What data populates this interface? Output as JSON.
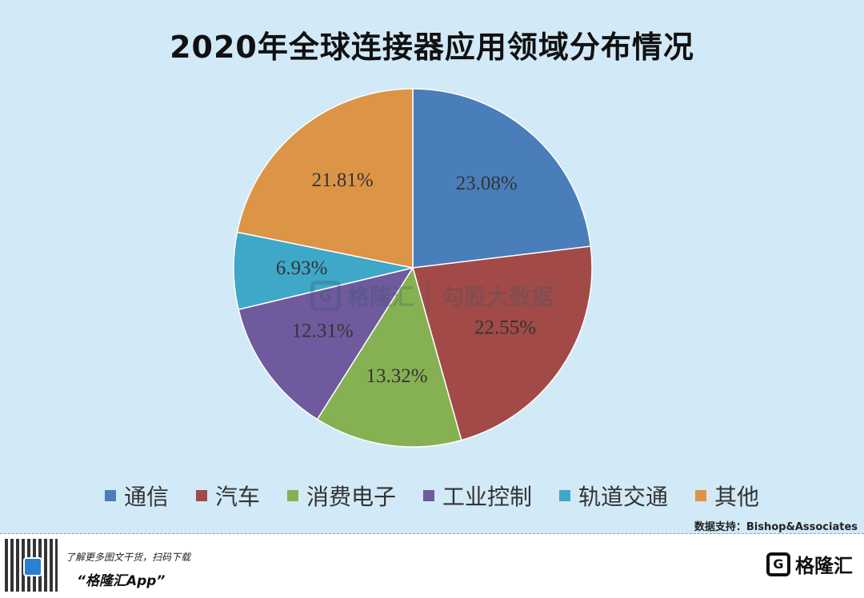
{
  "header": {
    "title": "2020年全球连接器应用领域分布情况"
  },
  "chart_data": {
    "type": "pie",
    "title": "2020年全球连接器应用领域分布情况",
    "slices": [
      {
        "label": "通信",
        "value": 23.08,
        "value_label": "23.08%",
        "color": "#4a7ebb"
      },
      {
        "label": "汽车",
        "value": 22.55,
        "value_label": "22.55%",
        "color": "#a24a48"
      },
      {
        "label": "消费电子",
        "value": 13.32,
        "value_label": "13.32%",
        "color": "#86b152"
      },
      {
        "label": "工业控制",
        "value": 12.31,
        "value_label": "12.31%",
        "color": "#6f5a9e"
      },
      {
        "label": "轨道交通",
        "value": 6.93,
        "value_label": "6.93%",
        "color": "#3fa8c8"
      },
      {
        "label": "其他",
        "value": 21.81,
        "value_label": "21.81%",
        "color": "#dc9446"
      }
    ],
    "start_angle_deg": 0,
    "direction": "clockwise",
    "legend_position": "bottom"
  },
  "source": {
    "text": "数据支持：Bishop&Associates"
  },
  "watermark": {
    "left_text": "格隆汇",
    "right_text": "勾股大数据"
  },
  "footer": {
    "line1": "了解更多图文干货，扫码下载",
    "line2": "“格隆汇App”",
    "brand_text": "格隆汇",
    "brand_logo_glyph": "G"
  }
}
